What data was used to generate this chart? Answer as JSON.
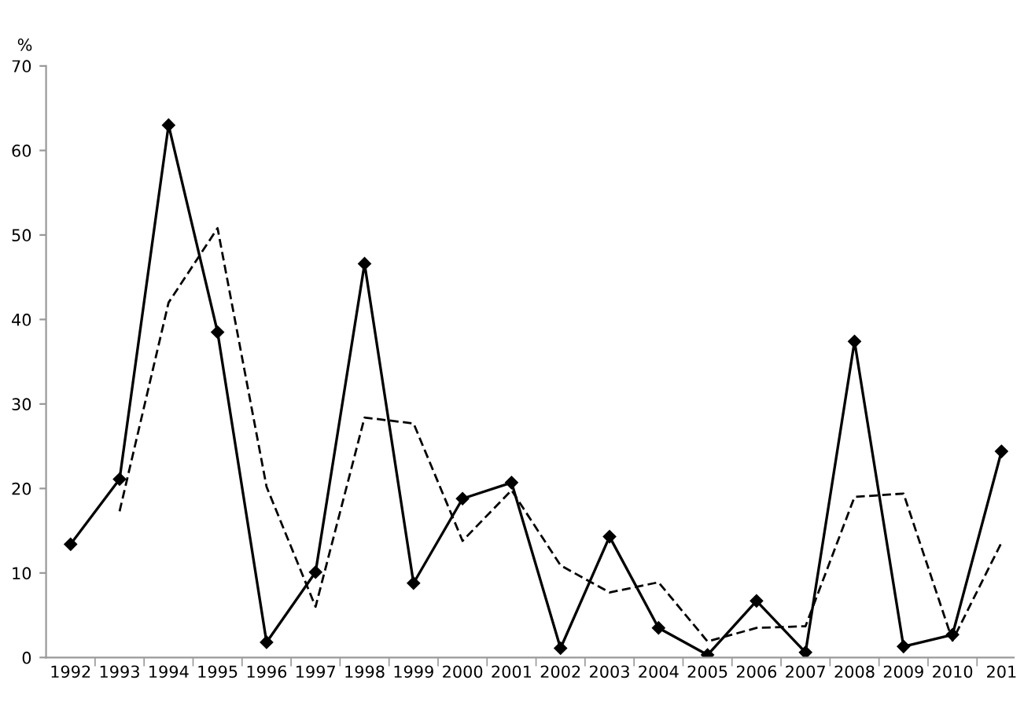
{
  "chart_data": {
    "type": "line",
    "ylabel": "%",
    "categories": [
      "1992",
      "1993",
      "1994",
      "1995",
      "1996",
      "1997",
      "1998",
      "1999",
      "2000",
      "2001",
      "2002",
      "2003",
      "2004",
      "2005",
      "2006",
      "2007",
      "2008",
      "2009",
      "2010",
      "201"
    ],
    "series": [
      {
        "color": "#000000",
        "marker": "diamond",
        "line_style": "solid",
        "values": [
          13.4,
          21.1,
          63,
          38.5,
          1.8,
          10.1,
          46.6,
          8.8,
          18.8,
          20.7,
          1.1,
          14.3,
          3.5,
          0.3,
          6.7,
          0.6,
          37.4,
          1.3,
          2.7,
          24.4
        ]
      },
      {
        "color": "#000000",
        "marker": "none",
        "line_style": "dashed",
        "values": [
          null,
          17.3,
          42,
          50.8,
          20.2,
          6.0,
          28.4,
          27.7,
          13.8,
          19.8,
          10.9,
          7.7,
          8.9,
          1.9,
          3.5,
          3.7,
          19.0,
          19.4,
          2.0,
          13.6
        ]
      }
    ],
    "ylim": [
      0,
      70
    ],
    "yticks": [
      0,
      10,
      20,
      30,
      40,
      50,
      60,
      70
    ],
    "grid": false,
    "legend": false
  }
}
